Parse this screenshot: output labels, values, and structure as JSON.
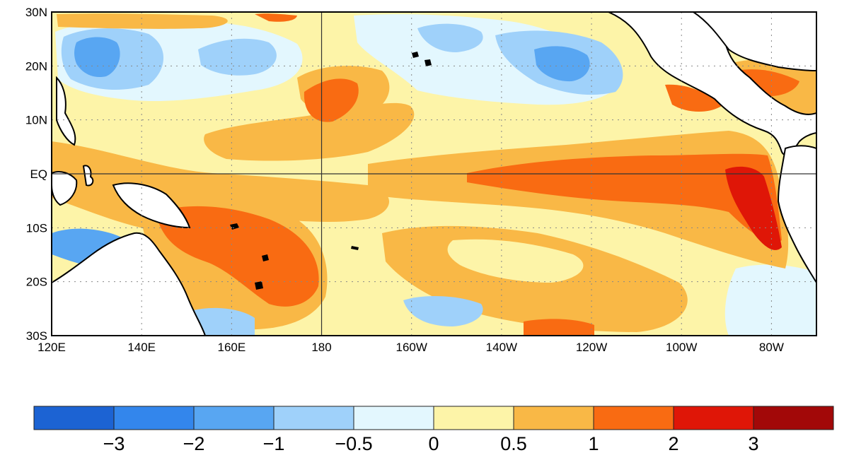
{
  "map": {
    "lat_labels": [
      "30N",
      "20N",
      "10N",
      "EQ",
      "10S",
      "20S",
      "30S"
    ],
    "lon_labels": [
      "120E",
      "140E",
      "160E",
      "180",
      "160W",
      "140W",
      "120W",
      "100W",
      "80W"
    ],
    "lat_range": [
      -30,
      30
    ],
    "lon_range": [
      120,
      290
    ]
  },
  "legend": {
    "colors": [
      "#1c63d3",
      "#3386ec",
      "#58a6f2",
      "#9fd1fa",
      "#e3f7fe",
      "#fdf4a8",
      "#f9b846",
      "#f96b12",
      "#df1607",
      "#a20808"
    ],
    "tick_labels": [
      "−3",
      "−2",
      "−1",
      "−0.5",
      "0",
      "0.5",
      "1",
      "2",
      "3"
    ]
  },
  "colors": {
    "land": "#ffffff",
    "coast": "#000000",
    "grid": "#888888"
  }
}
